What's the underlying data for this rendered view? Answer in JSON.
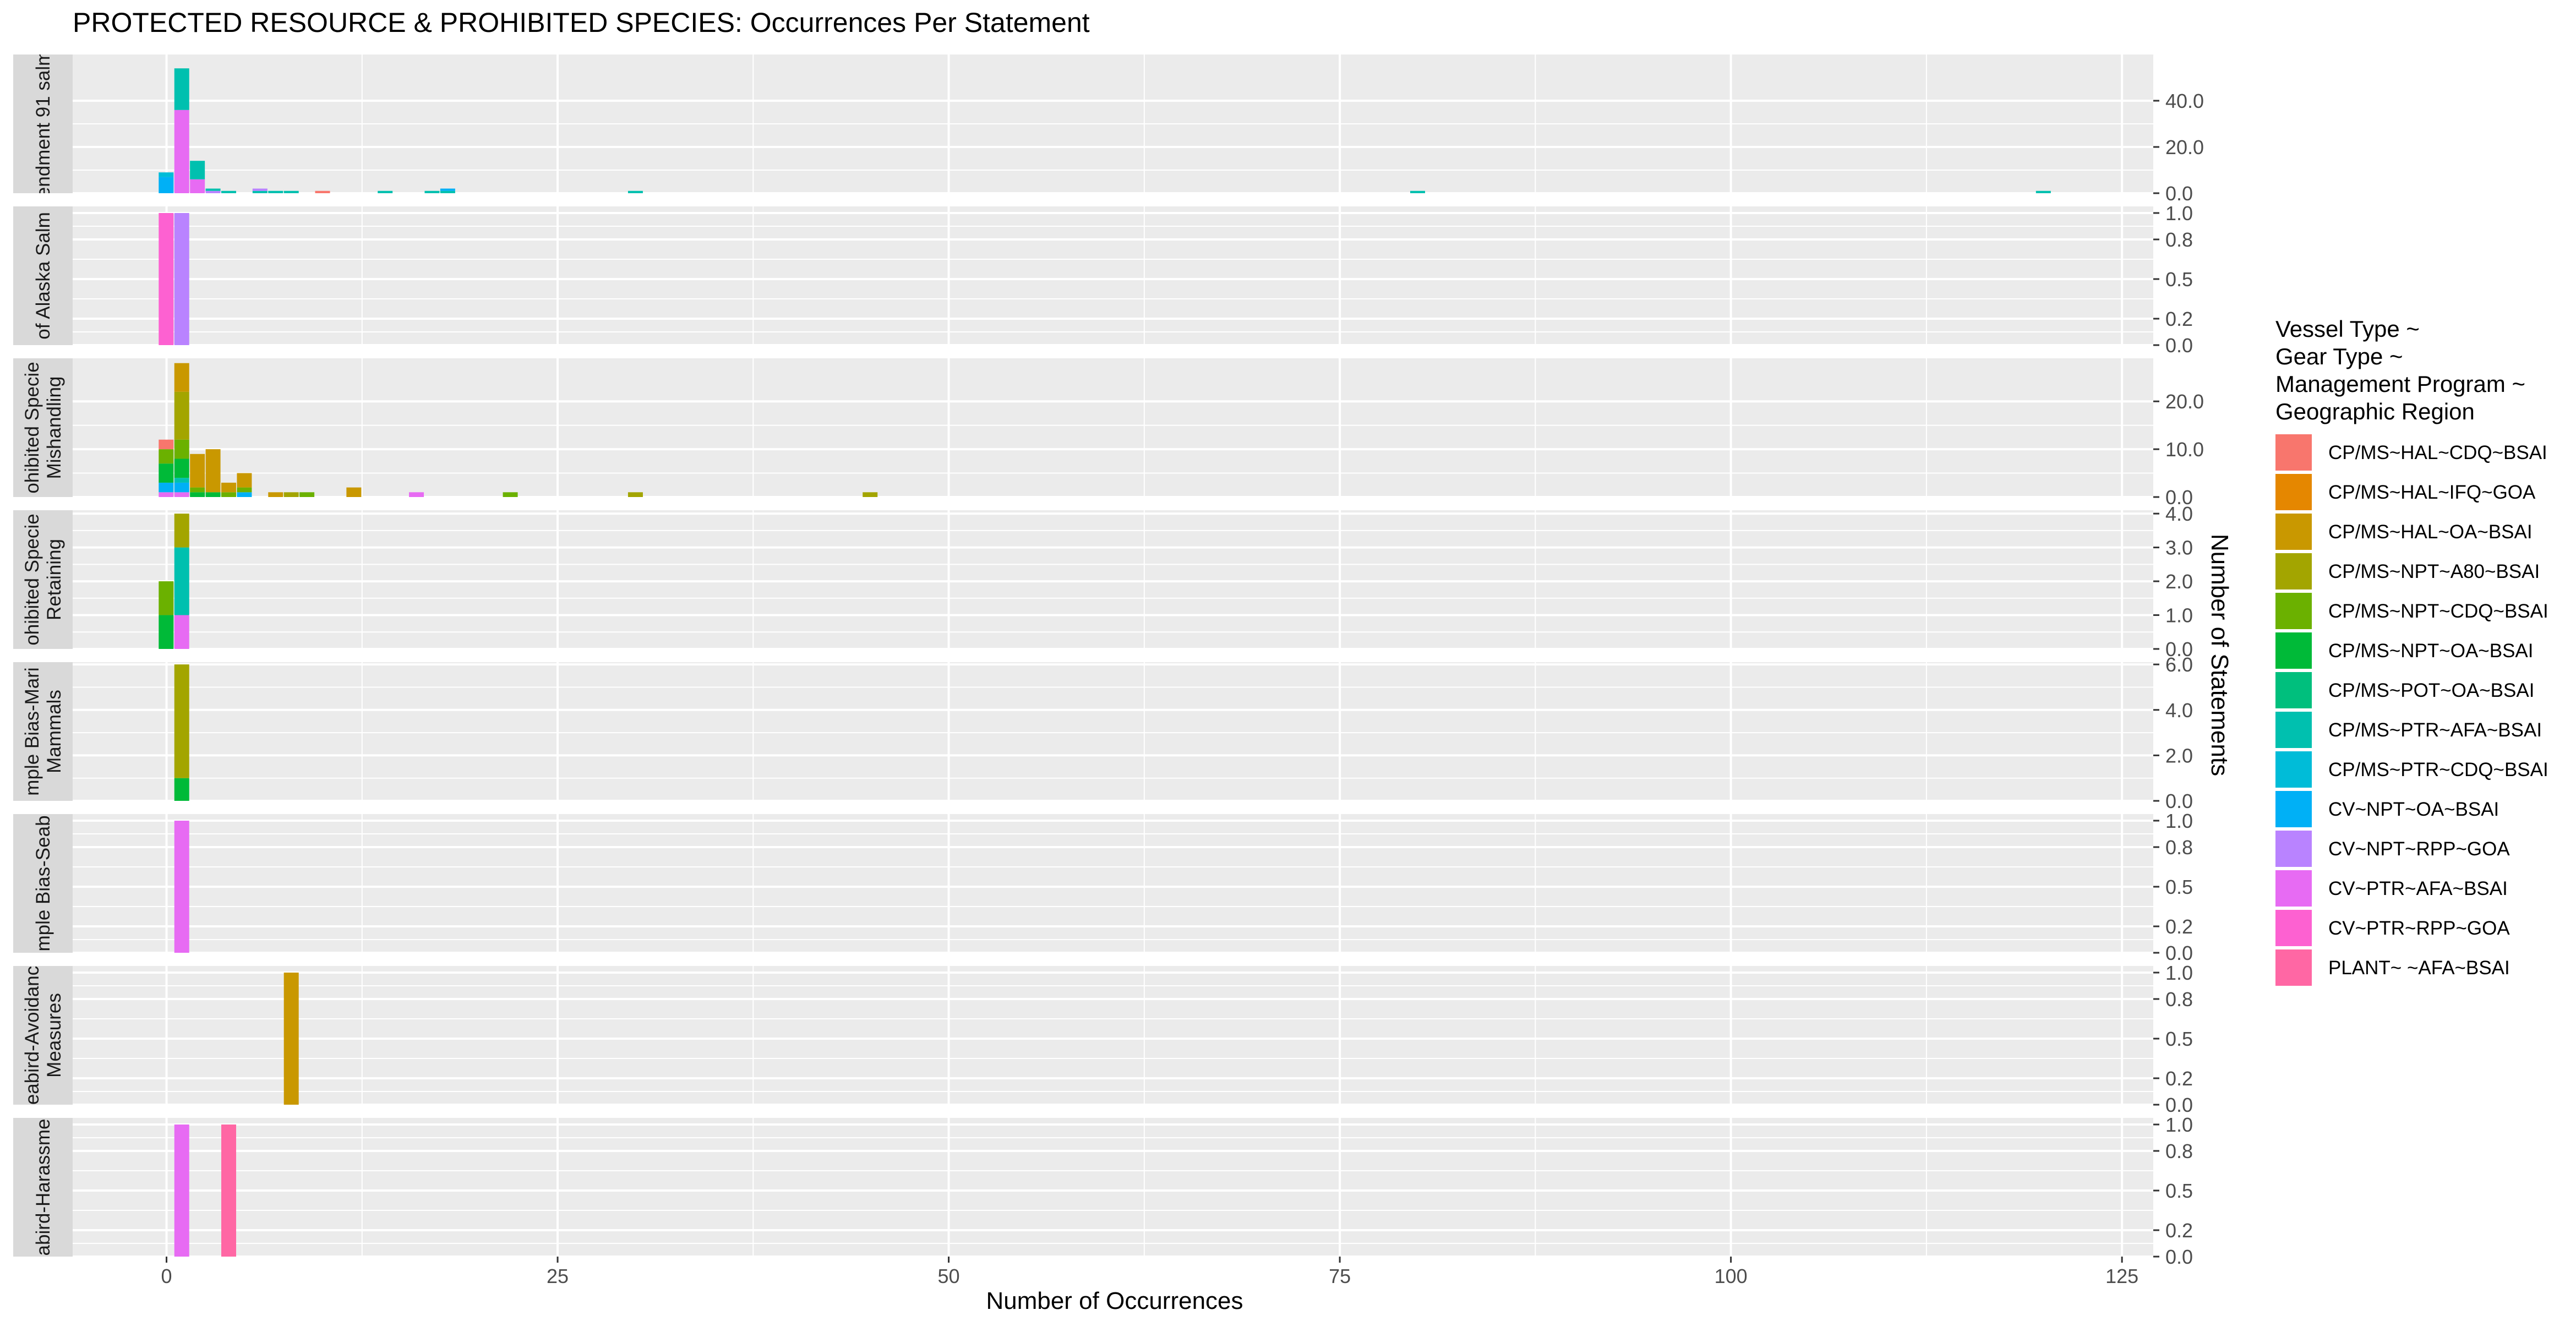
{
  "chart_data": {
    "type": "bar",
    "title": "PROTECTED RESOURCE & PROHIBITED SPECIES: Occurrences Per Statement",
    "xlabel": "Number of Occurrences",
    "ylabel": "Number of Statements",
    "xlim": [
      -6,
      127
    ],
    "x_ticks": [
      0,
      25,
      50,
      75,
      100,
      125
    ],
    "grid": true,
    "stacked": true,
    "legend": {
      "position": "right",
      "title_lines": [
        "Vessel Type ~",
        "Gear Type ~",
        "Management Program ~",
        "Geographic Region"
      ],
      "entries": [
        {
          "name": "CP/MS~HAL~CDQ~BSAI",
          "color": "#F8766D"
        },
        {
          "name": "CP/MS~HAL~IFQ~GOA",
          "color": "#E58700"
        },
        {
          "name": "CP/MS~HAL~OA~BSAI",
          "color": "#C99800"
        },
        {
          "name": "CP/MS~NPT~A80~BSAI",
          "color": "#A3A500"
        },
        {
          "name": "CP/MS~NPT~CDQ~BSAI",
          "color": "#6BB100"
        },
        {
          "name": "CP/MS~NPT~OA~BSAI",
          "color": "#00BA38"
        },
        {
          "name": "CP/MS~POT~OA~BSAI",
          "color": "#00BF7D"
        },
        {
          "name": "CP/MS~PTR~AFA~BSAI",
          "color": "#00C0AF"
        },
        {
          "name": "CP/MS~PTR~CDQ~BSAI",
          "color": "#00BCD8"
        },
        {
          "name": "CV~NPT~OA~BSAI",
          "color": "#00B0F6"
        },
        {
          "name": "CV~NPT~RPP~GOA",
          "color": "#B983FF"
        },
        {
          "name": "CV~PTR~AFA~BSAI",
          "color": "#E76BF3"
        },
        {
          "name": "CV~PTR~RPP~GOA",
          "color": "#FD61D1"
        },
        {
          "name": "PLANT~ ~AFA~BSAI",
          "color": "#FF67A4"
        }
      ]
    },
    "panels": [
      {
        "label_lines": [
          "endment 91 salm"
        ],
        "ylim": [
          0,
          60
        ],
        "y_ticks": [
          0,
          20,
          40
        ],
        "tick_labels": [
          "0.0",
          "20.0",
          "40.0"
        ],
        "bars": [
          {
            "x": 0,
            "segments": [
              {
                "series": 9,
                "value": 7
              },
              {
                "series": 8,
                "value": 2
              }
            ]
          },
          {
            "x": 1,
            "segments": [
              {
                "series": 11,
                "value": 36
              },
              {
                "series": 7,
                "value": 18
              }
            ]
          },
          {
            "x": 2,
            "segments": [
              {
                "series": 11,
                "value": 6
              },
              {
                "series": 7,
                "value": 8
              }
            ]
          },
          {
            "x": 3,
            "segments": [
              {
                "series": 10,
                "value": 1
              },
              {
                "series": 7,
                "value": 1
              }
            ]
          },
          {
            "x": 4,
            "segments": [
              {
                "series": 7,
                "value": 1
              }
            ]
          },
          {
            "x": 6,
            "segments": [
              {
                "series": 7,
                "value": 1
              },
              {
                "series": 10,
                "value": 1
              }
            ]
          },
          {
            "x": 7,
            "segments": [
              {
                "series": 7,
                "value": 1
              }
            ]
          },
          {
            "x": 8,
            "segments": [
              {
                "series": 7,
                "value": 1
              }
            ]
          },
          {
            "x": 10,
            "segments": [
              {
                "series": 0,
                "value": 1
              }
            ]
          },
          {
            "x": 14,
            "segments": [
              {
                "series": 7,
                "value": 1
              }
            ]
          },
          {
            "x": 17,
            "segments": [
              {
                "series": 7,
                "value": 1
              }
            ]
          },
          {
            "x": 18,
            "segments": [
              {
                "series": 7,
                "value": 1
              },
              {
                "series": 9,
                "value": 1
              }
            ]
          },
          {
            "x": 30,
            "segments": [
              {
                "series": 7,
                "value": 1
              }
            ]
          },
          {
            "x": 80,
            "segments": [
              {
                "series": 7,
                "value": 1
              }
            ]
          },
          {
            "x": 120,
            "segments": [
              {
                "series": 7,
                "value": 1
              }
            ]
          }
        ]
      },
      {
        "label_lines": [
          "of Alaska Salm"
        ],
        "ylim": [
          0,
          1.05
        ],
        "y_ticks": [
          0,
          0.2,
          0.5,
          0.8,
          1.0
        ],
        "tick_labels": [
          "0.0",
          "0.2",
          "0.5",
          "0.8",
          "1.0"
        ],
        "bars": [
          {
            "x": 0,
            "segments": [
              {
                "series": 12,
                "value": 1
              }
            ]
          },
          {
            "x": 1,
            "segments": [
              {
                "series": 10,
                "value": 1
              }
            ]
          }
        ]
      },
      {
        "label_lines": [
          "ohibited Specie",
          "Mishandling"
        ],
        "ylim": [
          0,
          29
        ],
        "y_ticks": [
          0,
          10,
          20
        ],
        "tick_labels": [
          "0.0",
          "10.0",
          "20.0"
        ],
        "bars": [
          {
            "x": 0,
            "segments": [
              {
                "series": 11,
                "value": 1
              },
              {
                "series": 9,
                "value": 2
              },
              {
                "series": 5,
                "value": 4
              },
              {
                "series": 4,
                "value": 3
              },
              {
                "series": 0,
                "value": 2
              }
            ]
          },
          {
            "x": 1,
            "segments": [
              {
                "series": 11,
                "value": 1
              },
              {
                "series": 9,
                "value": 2
              },
              {
                "series": 7,
                "value": 1
              },
              {
                "series": 5,
                "value": 4
              },
              {
                "series": 4,
                "value": 4
              },
              {
                "series": 3,
                "value": 10
              },
              {
                "series": 2,
                "value": 6
              }
            ]
          },
          {
            "x": 2,
            "segments": [
              {
                "series": 5,
                "value": 1
              },
              {
                "series": 4,
                "value": 1
              },
              {
                "series": 2,
                "value": 7
              }
            ]
          },
          {
            "x": 3,
            "segments": [
              {
                "series": 5,
                "value": 1
              },
              {
                "series": 2,
                "value": 9
              }
            ]
          },
          {
            "x": 4,
            "segments": [
              {
                "series": 4,
                "value": 1
              },
              {
                "series": 2,
                "value": 2
              }
            ]
          },
          {
            "x": 5,
            "segments": [
              {
                "series": 9,
                "value": 1
              },
              {
                "series": 4,
                "value": 1
              },
              {
                "series": 2,
                "value": 3
              }
            ]
          },
          {
            "x": 7,
            "segments": [
              {
                "series": 2,
                "value": 1
              }
            ]
          },
          {
            "x": 8,
            "segments": [
              {
                "series": 3,
                "value": 1
              }
            ]
          },
          {
            "x": 9,
            "segments": [
              {
                "series": 4,
                "value": 1
              }
            ]
          },
          {
            "x": 12,
            "segments": [
              {
                "series": 2,
                "value": 2
              }
            ]
          },
          {
            "x": 16,
            "segments": [
              {
                "series": 11,
                "value": 1
              }
            ]
          },
          {
            "x": 22,
            "segments": [
              {
                "series": 4,
                "value": 1
              }
            ]
          },
          {
            "x": 30,
            "segments": [
              {
                "series": 3,
                "value": 1
              }
            ]
          },
          {
            "x": 45,
            "segments": [
              {
                "series": 3,
                "value": 1
              }
            ]
          }
        ]
      },
      {
        "label_lines": [
          "ohibited Specie",
          "Retaining"
        ],
        "ylim": [
          0,
          4.1
        ],
        "y_ticks": [
          0,
          1,
          2,
          3,
          4
        ],
        "tick_labels": [
          "0.0",
          "1.0",
          "2.0",
          "3.0",
          "4.0"
        ],
        "bars": [
          {
            "x": 0,
            "segments": [
              {
                "series": 5,
                "value": 1
              },
              {
                "series": 4,
                "value": 1
              }
            ]
          },
          {
            "x": 1,
            "segments": [
              {
                "series": 11,
                "value": 1
              },
              {
                "series": 7,
                "value": 2
              },
              {
                "series": 3,
                "value": 1
              }
            ]
          }
        ]
      },
      {
        "label_lines": [
          "mple Bias-Mari",
          "Mammals"
        ],
        "ylim": [
          0,
          6.1
        ],
        "y_ticks": [
          0,
          2,
          4,
          6
        ],
        "tick_labels": [
          "0.0",
          "2.0",
          "4.0",
          "6.0"
        ],
        "bars": [
          {
            "x": 1,
            "segments": [
              {
                "series": 5,
                "value": 1
              },
              {
                "series": 3,
                "value": 5
              }
            ]
          }
        ]
      },
      {
        "label_lines": [
          "mple Bias-Seab"
        ],
        "ylim": [
          0,
          1.05
        ],
        "y_ticks": [
          0,
          0.2,
          0.5,
          0.8,
          1.0
        ],
        "tick_labels": [
          "0.0",
          "0.2",
          "0.5",
          "0.8",
          "1.0"
        ],
        "bars": [
          {
            "x": 1,
            "segments": [
              {
                "series": 11,
                "value": 1
              }
            ]
          }
        ]
      },
      {
        "label_lines": [
          "eabird-Avoidanc",
          "Measures"
        ],
        "ylim": [
          0,
          1.05
        ],
        "y_ticks": [
          0,
          0.2,
          0.5,
          0.8,
          1.0
        ],
        "tick_labels": [
          "0.0",
          "0.2",
          "0.5",
          "0.8",
          "1.0"
        ],
        "bars": [
          {
            "x": 8,
            "segments": [
              {
                "series": 2,
                "value": 1
              }
            ]
          }
        ]
      },
      {
        "label_lines": [
          "abird-Harassme"
        ],
        "ylim": [
          0,
          1.05
        ],
        "y_ticks": [
          0,
          0.2,
          0.5,
          0.8,
          1.0
        ],
        "tick_labels": [
          "0.0",
          "0.2",
          "0.5",
          "0.8",
          "1.0"
        ],
        "bars": [
          {
            "x": 1,
            "segments": [
              {
                "series": 11,
                "value": 1
              }
            ]
          },
          {
            "x": 4,
            "segments": [
              {
                "series": 13,
                "value": 1
              }
            ]
          }
        ]
      }
    ]
  }
}
